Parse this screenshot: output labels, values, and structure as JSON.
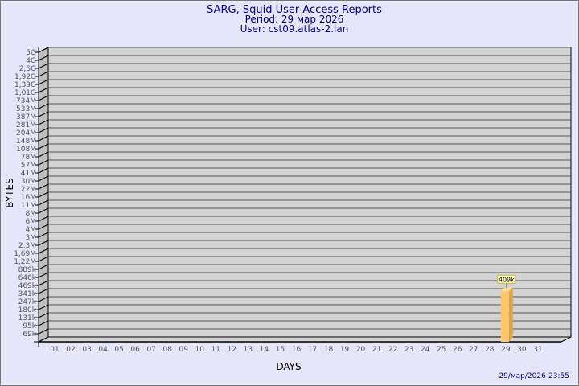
{
  "chart_data": {
    "type": "bar",
    "title": "SARG, Squid User Access Reports",
    "subtitle": [
      "Period: 29 мар 2026",
      "User: cst09.atlas-2.lan"
    ],
    "xlabel": "DAYS",
    "ylabel": "BYTES",
    "yscale": "log",
    "categories": [
      "01",
      "02",
      "03",
      "04",
      "05",
      "06",
      "07",
      "08",
      "09",
      "10",
      "11",
      "12",
      "13",
      "14",
      "15",
      "16",
      "17",
      "18",
      "19",
      "20",
      "21",
      "22",
      "23",
      "24",
      "25",
      "26",
      "27",
      "28",
      "29",
      "30",
      "31"
    ],
    "ytick_labels": [
      "5G",
      "4G",
      "2,6G",
      "1,92G",
      "1,39G",
      "1,01G",
      "734M",
      "533M",
      "387M",
      "281M",
      "204M",
      "148M",
      "108M",
      "78M",
      "57M",
      "41M",
      "30M",
      "22M",
      "16M",
      "11M",
      "8M",
      "6M",
      "4M",
      "3M",
      "2,3M",
      "1,69M",
      "1,22M",
      "889k",
      "646k",
      "469k",
      "341k",
      "247k",
      "180k",
      "131k",
      "95k",
      "69k"
    ],
    "ytick_values": [
      5000000000.0,
      4000000000.0,
      2600000000.0,
      1920000000.0,
      1390000000.0,
      1010000000.0,
      734000000.0,
      533000000.0,
      387000000.0,
      281000000.0,
      204000000.0,
      148000000.0,
      108000000.0,
      78000000.0,
      57000000.0,
      41000000.0,
      30000000.0,
      22000000.0,
      16000000.0,
      11000000.0,
      8000000.0,
      6000000.0,
      4000000.0,
      3000000.0,
      2300000.0,
      1690000.0,
      1220000.0,
      889000.0,
      646000.0,
      469000.0,
      341000.0,
      247000.0,
      180000.0,
      131000.0,
      95000.0,
      69000.0
    ],
    "bars": [
      {
        "category": "29",
        "value": 409000,
        "label": "409k"
      }
    ],
    "grid": true,
    "colors": {
      "bar": "#ffc66a",
      "bar_side": "#e0a64a",
      "wall": "#d3d3d3",
      "title": "#00008b"
    },
    "timestamp": "29/мар/2026-23:55"
  }
}
